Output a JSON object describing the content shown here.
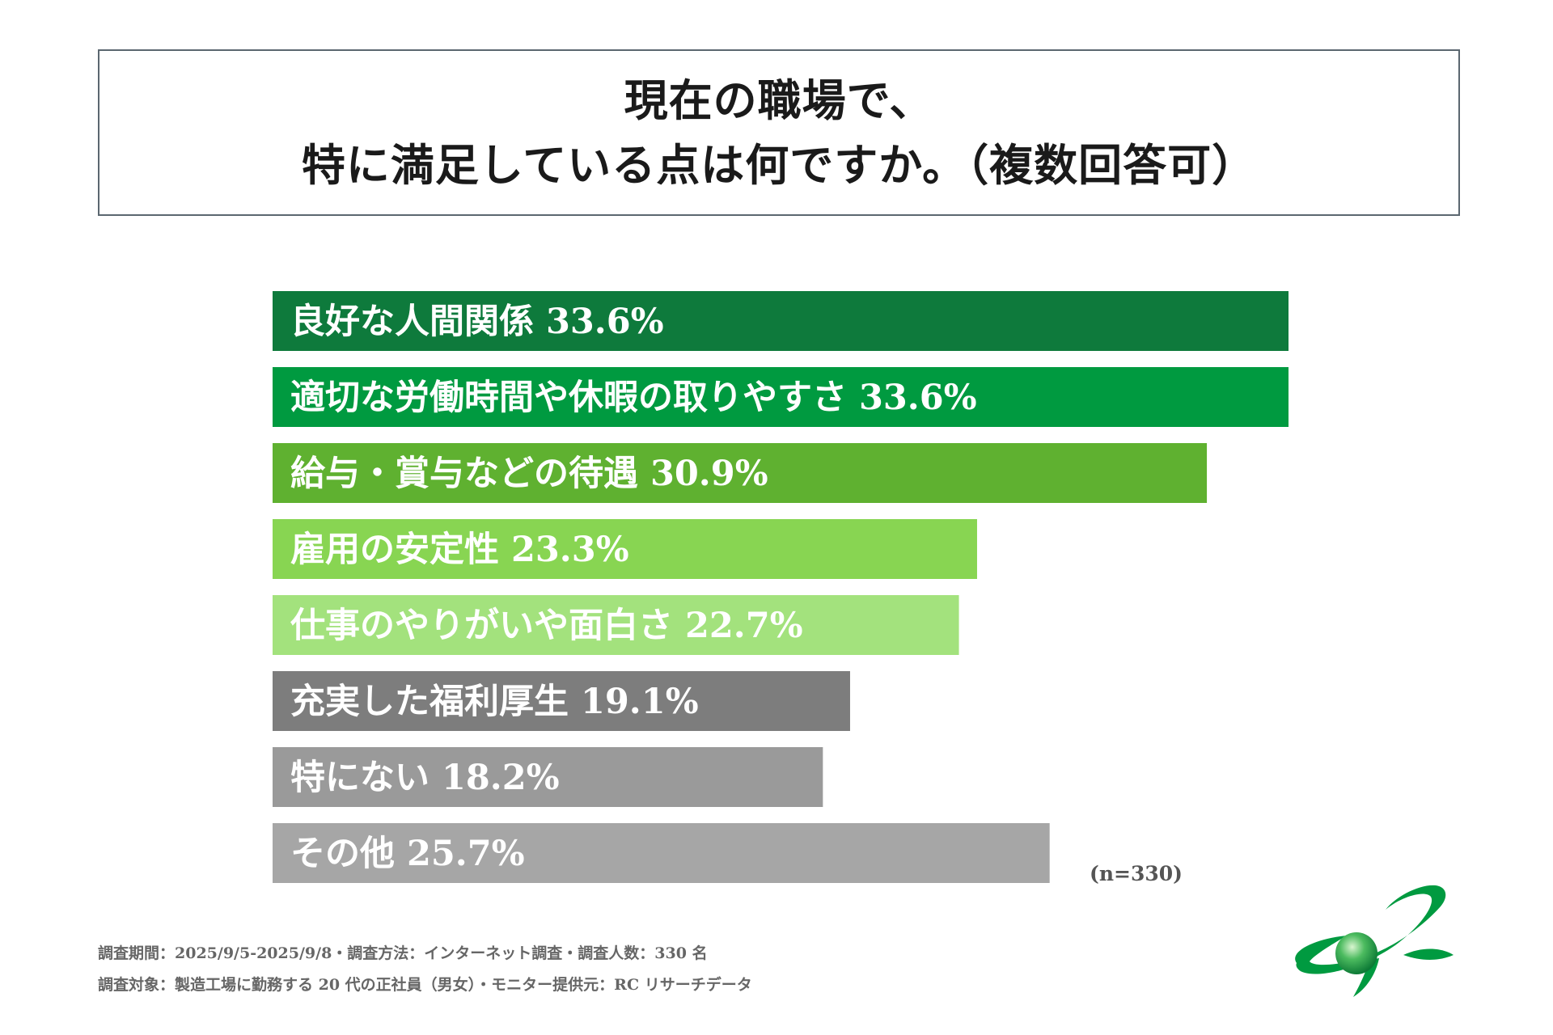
{
  "title": {
    "line1": "現在の職場で、",
    "line2": "特に満足している点は何ですか。（複数回答可）"
  },
  "chart_data": {
    "type": "bar",
    "orientation": "horizontal",
    "categories": [
      "良好な人間関係",
      "適切な労働時間や休暇の取りやすさ",
      "給与・賞与などの待遇",
      "雇用の安定性",
      "仕事のやりがいや面白さ",
      "充実した福利厚生",
      "特にない",
      "その他"
    ],
    "values": [
      33.6,
      33.6,
      30.9,
      23.3,
      22.7,
      19.1,
      18.2,
      25.7
    ],
    "labels": [
      "良好な人間関係 33.6%",
      "適切な労働時間や休暇の取りやすさ 33.6%",
      "給与・賞与などの待遇 30.9%",
      "雇用の安定性 23.3%",
      "仕事のやりがいや面白さ 22.7%",
      "充実した福利厚生 19.1%",
      "特にない 18.2%",
      "その他 25.7%"
    ],
    "colors": [
      "#0e7a3c",
      "#009a40",
      "#5fb130",
      "#88d552",
      "#a3e27d",
      "#7d7d7d",
      "#9a9a9a",
      "#a6a6a6"
    ],
    "unit": "%",
    "xlim": [
      0,
      33.6
    ],
    "grid": false,
    "title": "現在の職場で、特に満足している点は何ですか。（複数回答可）",
    "xlabel": "",
    "ylabel": ""
  },
  "sample_size": "(n=330)",
  "footnotes": {
    "line1": "調査期間：2025/9/5-2025/9/8・調査方法：インターネット調査・調査人数：330 名",
    "line2": "調査対象：製造工場に勤務する 20 代の正社員（男女）・モニター提供元：RC リサーチデータ"
  },
  "logo": {
    "icon": "green-orbit-globe-logo",
    "colors": {
      "primary": "#009a40",
      "globe": "#2fa84f"
    }
  }
}
